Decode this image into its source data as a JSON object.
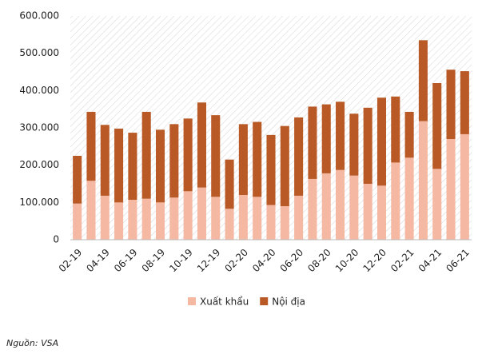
{
  "chart_data": {
    "type": "stacked_bar",
    "categories": [
      "02-19",
      null,
      "04-19",
      null,
      "06-19",
      null,
      "08-19",
      null,
      "10-19",
      null,
      "12-19",
      null,
      "02-20",
      null,
      "04-20",
      null,
      "06-20",
      null,
      "08-20",
      null,
      "10-20",
      null,
      "12-20",
      null,
      "02-21",
      null,
      "04-21",
      null,
      "06-21"
    ],
    "series": [
      {
        "name": "Xuất khẩu",
        "color": "#f4b8a3",
        "values": [
          97000,
          158000,
          118000,
          100000,
          107000,
          110000,
          100000,
          113000,
          130000,
          140000,
          115000,
          83000,
          120000,
          115000,
          93000,
          90000,
          118000,
          163000,
          178000,
          187000,
          172000,
          150000,
          145000,
          207000,
          220000,
          318000,
          190000,
          270000,
          283000
        ]
      },
      {
        "name": "Nội địa",
        "color": "#b95a26",
        "values": [
          128000,
          185000,
          190000,
          198000,
          180000,
          233000,
          195000,
          197000,
          195000,
          228000,
          219000,
          132000,
          190000,
          201000,
          188000,
          215000,
          210000,
          194000,
          185000,
          183000,
          166000,
          204000,
          236000,
          177000,
          123000,
          217000,
          230000,
          186000,
          169000
        ]
      }
    ],
    "ylim": [
      0,
      600000
    ],
    "yticks": [
      0,
      {
        "value": 100000,
        "label": "100.000"
      },
      {
        "value": 200000,
        "label": "200.000"
      },
      {
        "value": 300000,
        "label": "300.000"
      },
      {
        "value": 400000,
        "label": "400.000"
      },
      {
        "value": 500000,
        "label": "500.000"
      },
      {
        "value": 600000,
        "label": "600.000"
      }
    ],
    "hatched_background": true,
    "legend": "bottom",
    "source": "Nguồn: VSA"
  }
}
